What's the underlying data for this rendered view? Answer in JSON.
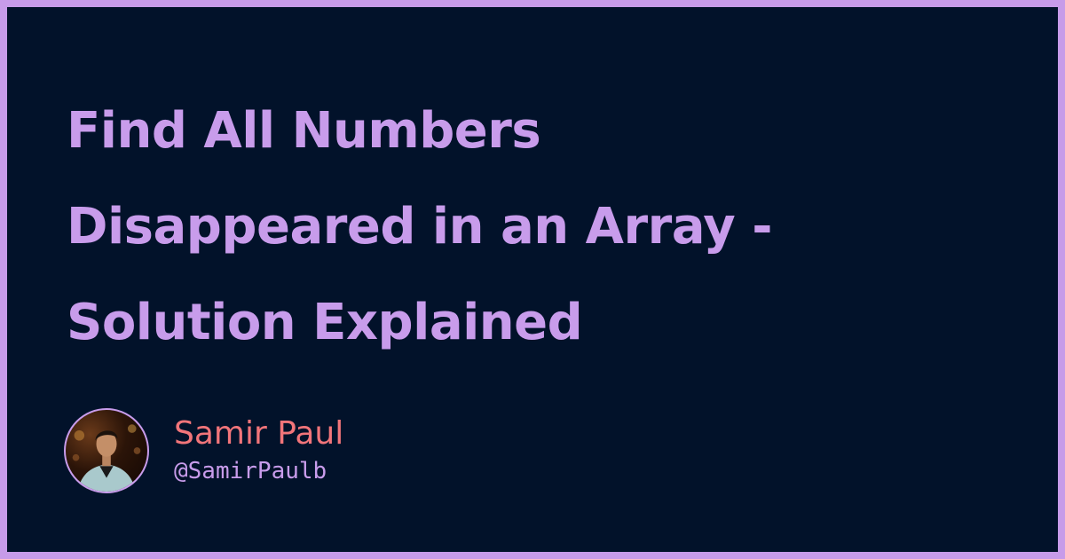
{
  "title": {
    "lines": [
      "Find All Numbers",
      "Disappeared in an Array -",
      "Solution Explained"
    ]
  },
  "author": {
    "name": "Samir Paul",
    "handle": "@SamirPaulb",
    "avatar_icon": "author-photo"
  },
  "colors": {
    "frame": "#c79be9",
    "background": "#02122a",
    "title": "#c89ceb",
    "name": "#f2757a",
    "handle": "#c89ceb"
  }
}
